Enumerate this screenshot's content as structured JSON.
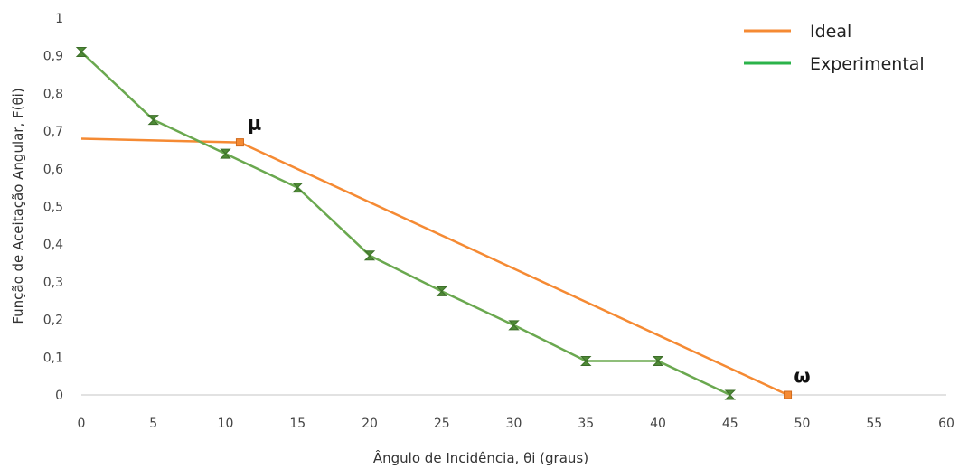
{
  "chart_data": {
    "type": "line",
    "title": "",
    "xlabel": "Ângulo de Incidência, θi (graus)",
    "ylabel": "Função de Aceitação Angular, F(θi)",
    "xlim": [
      0,
      60
    ],
    "ylim": [
      0,
      1
    ],
    "x_ticks": [
      0,
      5,
      10,
      15,
      20,
      25,
      30,
      35,
      40,
      45,
      50,
      55,
      60
    ],
    "x_tick_labels": [
      "0",
      "5",
      "10",
      "15",
      "20",
      "25",
      "30",
      "35",
      "40",
      "45",
      "50",
      "55",
      "60"
    ],
    "y_ticks": [
      0,
      0.1,
      0.2,
      0.3,
      0.4,
      0.5,
      0.6,
      0.7,
      0.8,
      0.9,
      1
    ],
    "y_tick_labels": [
      "0",
      "0,1",
      "0,2",
      "0,3",
      "0,4",
      "0,5",
      "0,6",
      "0,7",
      "0,8",
      "0,9",
      "1"
    ],
    "grid": false,
    "legend_position": "top-right",
    "series": [
      {
        "name": "Ideal",
        "color": "#f58a33",
        "x": [
          0,
          11,
          49
        ],
        "y": [
          0.68,
          0.67,
          0
        ],
        "marker_x": [
          11,
          49
        ],
        "marker_y": [
          0.67,
          0
        ]
      },
      {
        "name": "Experimental",
        "color": "#6aa84f",
        "legend_color": "#2bb34a",
        "x": [
          0,
          5,
          10,
          15,
          20,
          25,
          30,
          35,
          40,
          45
        ],
        "y": [
          0.91,
          0.73,
          0.64,
          0.55,
          0.37,
          0.275,
          0.185,
          0.09,
          0.09,
          0
        ]
      }
    ],
    "annotations": [
      {
        "text": "μ",
        "x": 11,
        "y": 0.67
      },
      {
        "text": "ω",
        "x": 49,
        "y": 0
      }
    ]
  }
}
